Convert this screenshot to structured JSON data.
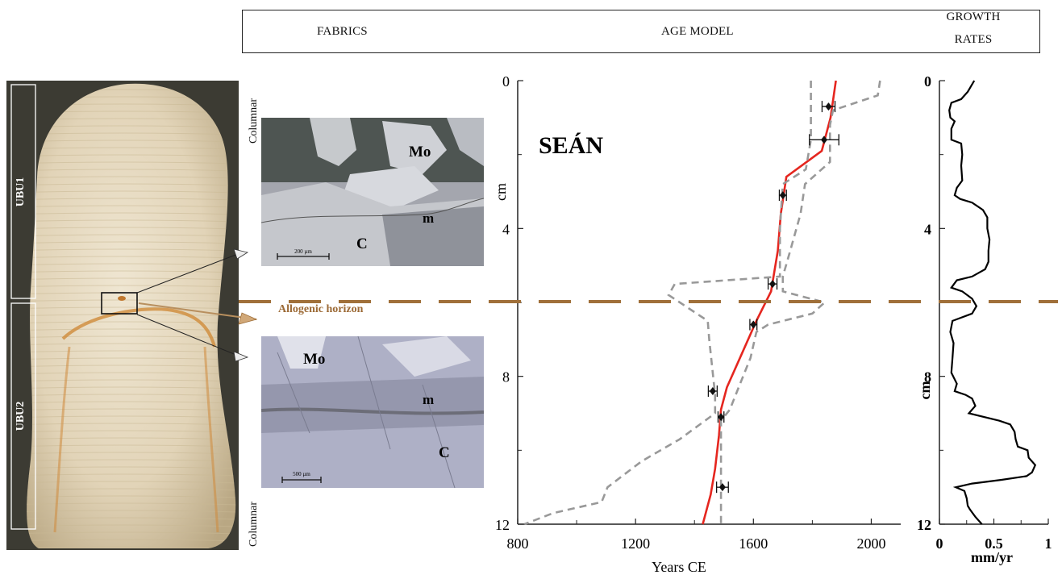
{
  "header": {
    "fabrics": "FABRICS",
    "age_model": "AGE MODEL",
    "growth_rates_line1": "GROWTH",
    "growth_rates_line2": "RATES"
  },
  "photo": {
    "unit_top": "UBU1",
    "unit_bottom": "UBU2"
  },
  "fabrics": {
    "top_label": "Columnar",
    "bottom_label": "Columnar",
    "horizon_label": "Allogenic horizon",
    "micro_top": {
      "mo": "Mo",
      "m": "m",
      "c": "C",
      "scale": "200 µm"
    },
    "micro_bottom": {
      "mo": "Mo",
      "m": "m",
      "c": "C",
      "scale": "500 µm"
    }
  },
  "colors": {
    "age_model_line": "#e5261f",
    "uncertainty": "#999999",
    "horizon": "#a0703a",
    "growth_line": "#000000"
  },
  "chart_data": [
    {
      "type": "line",
      "title": "SEÁN",
      "xlabel": "Years CE",
      "ylabel": "cm",
      "xlim": [
        800,
        2100
      ],
      "ylim": [
        0,
        12
      ],
      "y_inverted": true,
      "x_ticks": [
        800,
        1200,
        1600,
        2000
      ],
      "y_ticks": [
        0,
        4,
        8,
        12
      ],
      "series": [
        {
          "role": "age-model",
          "points": [
            [
              1880,
              0
            ],
            [
              1862,
              1.0
            ],
            [
              1832,
              1.9
            ],
            [
              1712,
              2.6
            ],
            [
              1693,
              3.6
            ],
            [
              1683,
              4.6
            ],
            [
              1660,
              5.7
            ],
            [
              1610,
              6.5
            ],
            [
              1560,
              7.4
            ],
            [
              1510,
              8.3
            ],
            [
              1490,
              8.9
            ],
            [
              1483,
              9.6
            ],
            [
              1470,
              10.5
            ],
            [
              1455,
              11.2
            ],
            [
              1428,
              12
            ]
          ]
        },
        {
          "role": "lower-uncertainty",
          "points": [
            [
              1795,
              0
            ],
            [
              1795,
              1.6
            ],
            [
              1778,
              2.4
            ],
            [
              1700,
              2.8
            ],
            [
              1690,
              4.0
            ],
            [
              1690,
              5.3
            ],
            [
              1333,
              5.5
            ],
            [
              1312,
              5.8
            ],
            [
              1445,
              6.5
            ],
            [
              1450,
              7.0
            ],
            [
              1470,
              8.5
            ],
            [
              1470,
              9.0
            ],
            [
              1350,
              9.7
            ],
            [
              1220,
              10.3
            ],
            [
              1105,
              11.0
            ],
            [
              1085,
              11.4
            ],
            [
              920,
              11.7
            ],
            [
              823,
              12
            ]
          ]
        },
        {
          "role": "upper-uncertainty",
          "points": [
            [
              2030,
              0
            ],
            [
              2022,
              0.4
            ],
            [
              1870,
              0.8
            ],
            [
              1860,
              1.2
            ],
            [
              1860,
              2.2
            ],
            [
              1775,
              2.8
            ],
            [
              1760,
              3.6
            ],
            [
              1725,
              4.6
            ],
            [
              1700,
              5.3
            ],
            [
              1700,
              5.7
            ],
            [
              1842,
              6.0
            ],
            [
              1800,
              6.3
            ],
            [
              1650,
              6.6
            ],
            [
              1610,
              6.8
            ],
            [
              1590,
              7.5
            ],
            [
              1550,
              8.3
            ],
            [
              1520,
              8.9
            ],
            [
              1490,
              9.2
            ],
            [
              1490,
              11.0
            ],
            [
              1490,
              12
            ]
          ]
        }
      ],
      "dates": [
        {
          "year": 1855,
          "depth": 0.7,
          "err": 22
        },
        {
          "year": 1840,
          "depth": 1.6,
          "err": 50
        },
        {
          "year": 1700,
          "depth": 3.1,
          "err": 12
        },
        {
          "year": 1665,
          "depth": 5.5,
          "err": 15
        },
        {
          "year": 1600,
          "depth": 6.6,
          "err": 12
        },
        {
          "year": 1462,
          "depth": 8.4,
          "err": 15
        },
        {
          "year": 1490,
          "depth": 9.1,
          "err": 10
        },
        {
          "year": 1495,
          "depth": 11.0,
          "err": 20
        }
      ]
    },
    {
      "type": "line",
      "xlabel": "mm/yr",
      "ylabel": "cm",
      "xlim": [
        0,
        1
      ],
      "ylim": [
        0,
        12
      ],
      "y_inverted": true,
      "x_ticks": [
        0,
        0.5,
        1
      ],
      "y_ticks": [
        0,
        4,
        8,
        12
      ],
      "series": [
        {
          "role": "growth-rate",
          "points": [
            [
              0.32,
              0
            ],
            [
              0.26,
              0.3
            ],
            [
              0.2,
              0.5
            ],
            [
              0.11,
              0.6
            ],
            [
              0.09,
              0.8
            ],
            [
              0.1,
              1.0
            ],
            [
              0.14,
              1.1
            ],
            [
              0.11,
              1.3
            ],
            [
              0.11,
              1.6
            ],
            [
              0.2,
              1.7
            ],
            [
              0.21,
              2.0
            ],
            [
              0.2,
              2.3
            ],
            [
              0.21,
              2.7
            ],
            [
              0.16,
              2.9
            ],
            [
              0.14,
              3.1
            ],
            [
              0.19,
              3.2
            ],
            [
              0.3,
              3.3
            ],
            [
              0.4,
              3.5
            ],
            [
              0.44,
              3.7
            ],
            [
              0.44,
              4.0
            ],
            [
              0.46,
              4.3
            ],
            [
              0.45,
              4.6
            ],
            [
              0.45,
              4.9
            ],
            [
              0.42,
              5.1
            ],
            [
              0.3,
              5.3
            ],
            [
              0.16,
              5.4
            ],
            [
              0.11,
              5.6
            ],
            [
              0.21,
              5.7
            ],
            [
              0.3,
              5.9
            ],
            [
              0.34,
              6.1
            ],
            [
              0.3,
              6.3
            ],
            [
              0.12,
              6.5
            ],
            [
              0.1,
              6.8
            ],
            [
              0.13,
              7.1
            ],
            [
              0.12,
              7.5
            ],
            [
              0.11,
              7.9
            ],
            [
              0.16,
              8.2
            ],
            [
              0.14,
              8.4
            ],
            [
              0.24,
              8.5
            ],
            [
              0.3,
              8.6
            ],
            [
              0.33,
              8.8
            ],
            [
              0.27,
              9.0
            ],
            [
              0.55,
              9.2
            ],
            [
              0.65,
              9.3
            ],
            [
              0.69,
              9.5
            ],
            [
              0.7,
              9.7
            ],
            [
              0.72,
              9.9
            ],
            [
              0.81,
              10.0
            ],
            [
              0.82,
              10.2
            ],
            [
              0.88,
              10.4
            ],
            [
              0.85,
              10.6
            ],
            [
              0.8,
              10.7
            ],
            [
              0.57,
              10.8
            ],
            [
              0.3,
              10.9
            ],
            [
              0.15,
              11.0
            ],
            [
              0.23,
              11.1
            ],
            [
              0.25,
              11.3
            ],
            [
              0.26,
              11.5
            ],
            [
              0.28,
              11.6
            ],
            [
              0.33,
              11.8
            ],
            [
              0.39,
              12
            ]
          ]
        }
      ]
    }
  ]
}
